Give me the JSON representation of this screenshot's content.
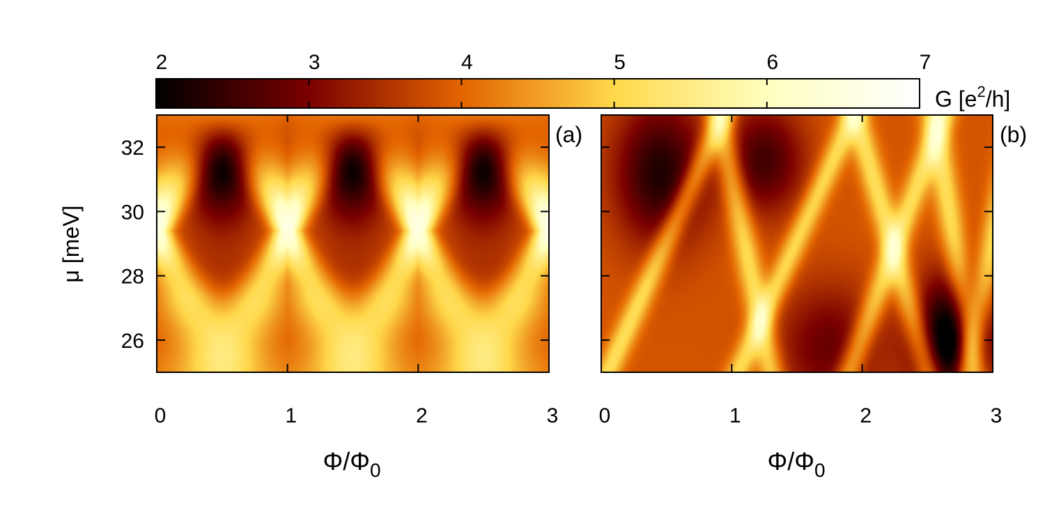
{
  "chart_data": {
    "type": "heatmap",
    "colorbar": {
      "label_prefix": "G [e",
      "label_sup": "2",
      "label_suffix": "/h]",
      "range": [
        2,
        7
      ],
      "ticks": [
        "2",
        "3",
        "4",
        "5",
        "6",
        "7"
      ],
      "colormap": [
        "#000000",
        "#7a0000",
        "#e36400",
        "#ffd84a",
        "#ffffc0",
        "#ffffff"
      ]
    },
    "y_axis": {
      "label": "μ [meV]",
      "range": [
        25,
        33
      ],
      "ticks": [
        "26",
        "28",
        "30",
        "32"
      ]
    },
    "x_axis": {
      "label_main": "Φ/Φ",
      "label_sub": "0",
      "range": [
        0,
        3
      ],
      "ticks": [
        "0",
        "1",
        "2",
        "3"
      ]
    },
    "panels": [
      {
        "tag": "(a)",
        "description_values": {
          "dark_lobes_flux": [
            0.5,
            1.5,
            2.5
          ],
          "dark_lobes_mu": 31.5,
          "bright_crossings_flux": [
            0,
            1,
            2,
            3
          ],
          "bright_crossings_mu": 29.5,
          "background_G": 4.0
        }
      },
      {
        "tag": "(b)",
        "description_values": {
          "dark_lobes_flux": [
            0.45,
            1.25,
            2.7
          ],
          "darkest_region": {
            "flux": 2.7,
            "mu": 25.8,
            "G": 2.0
          },
          "background_G": 3.8
        }
      }
    ]
  }
}
